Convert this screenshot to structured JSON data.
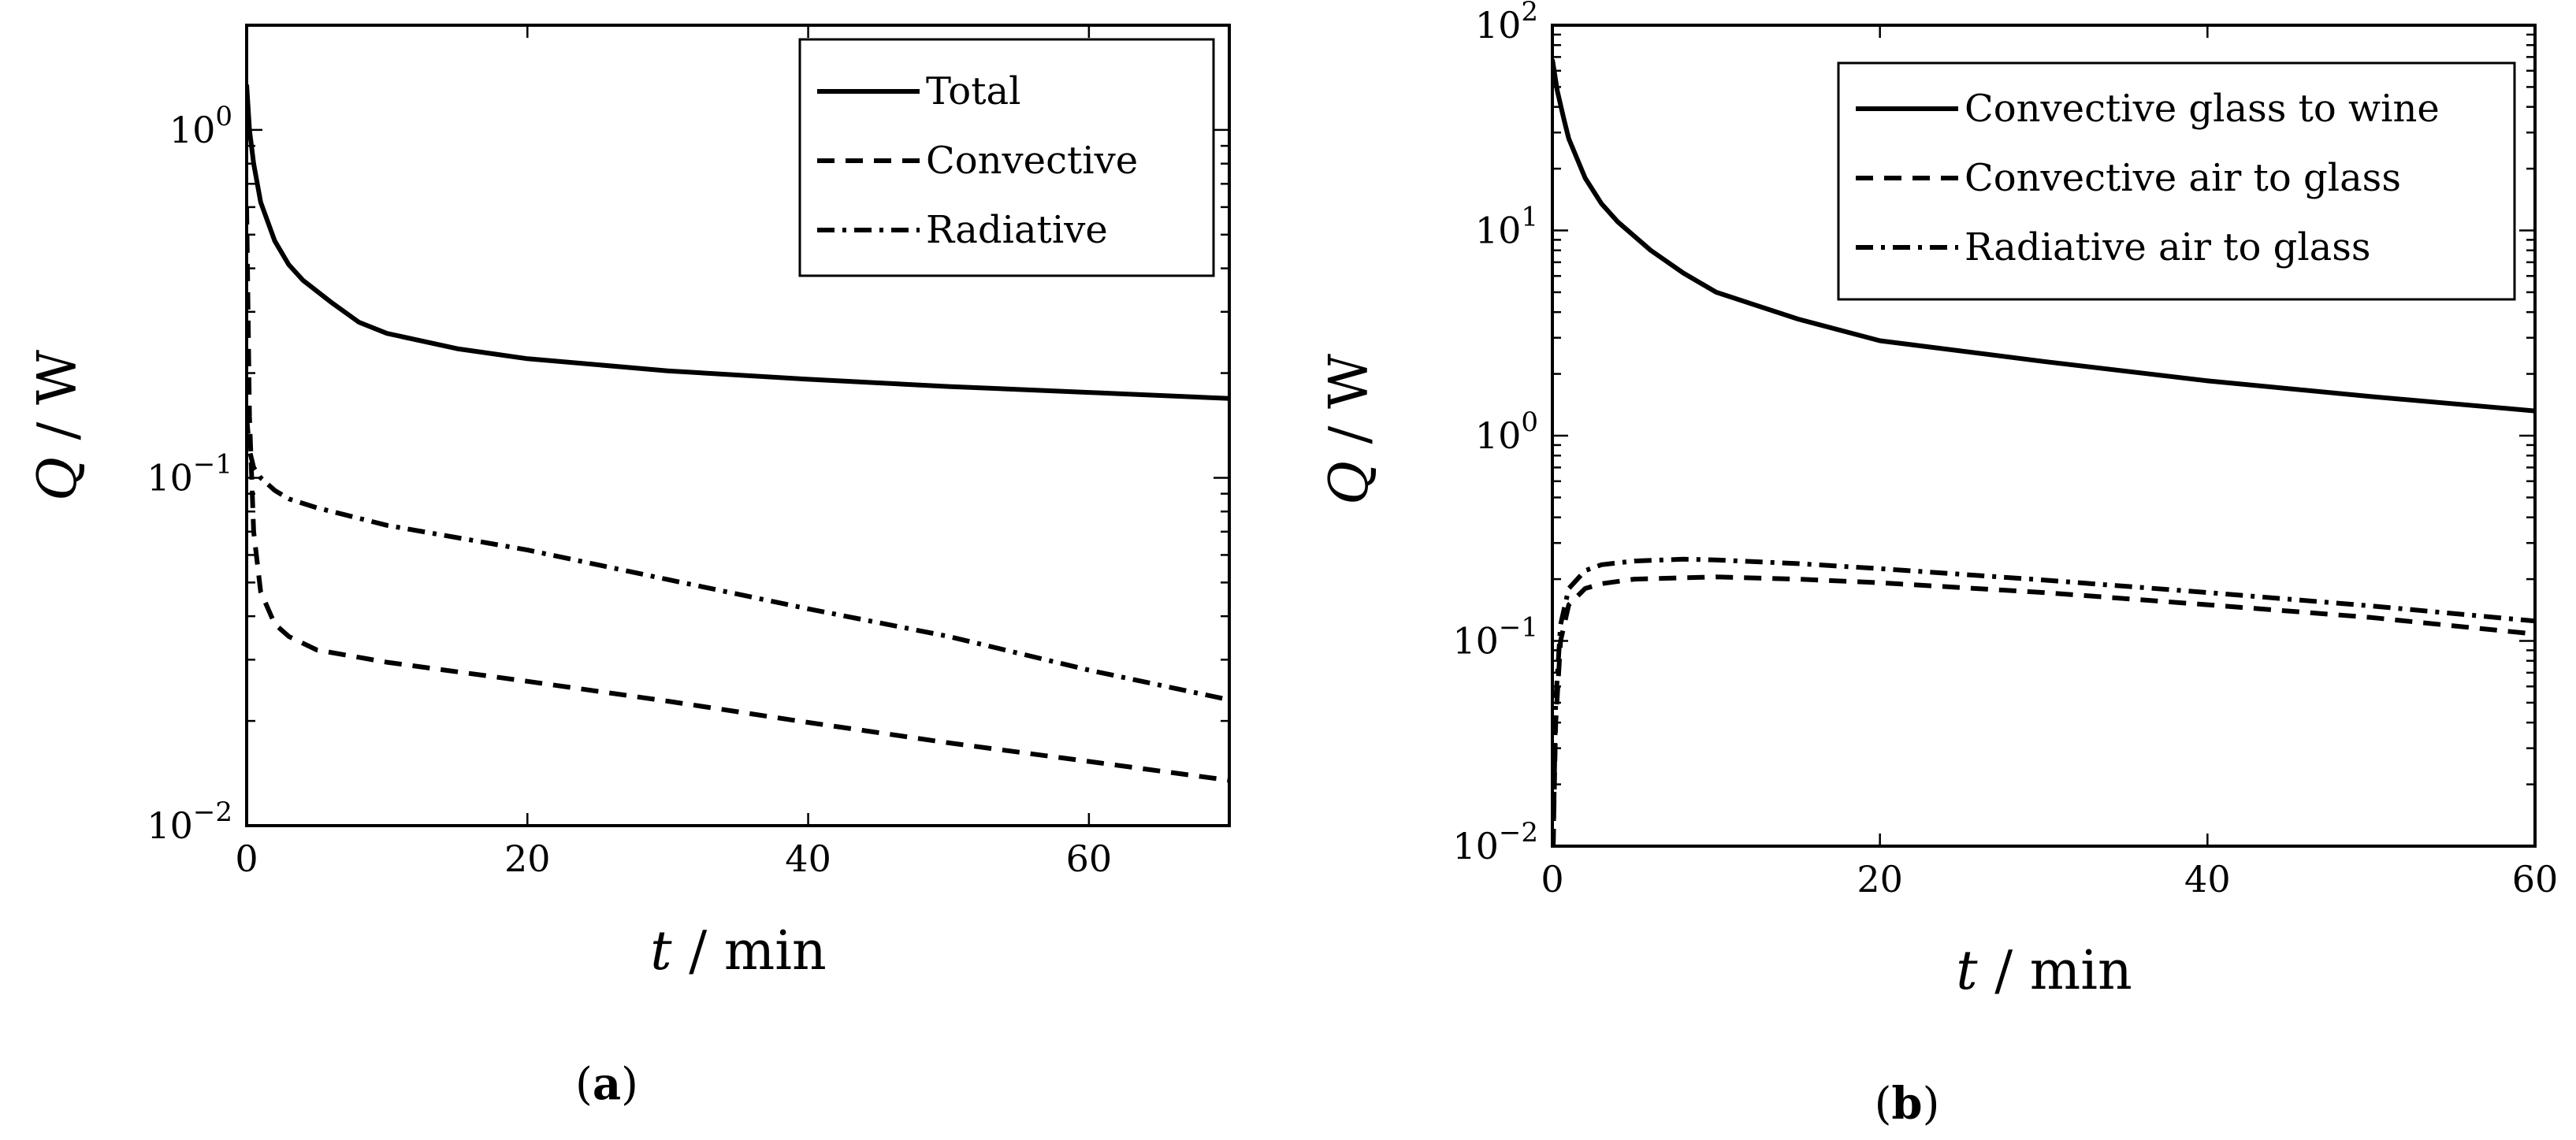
{
  "chart_data": [
    {
      "panel": "a",
      "type": "line",
      "caption": "(a)",
      "caption_letter": "a",
      "xlabel": "t / min",
      "ylabel": "Q / W",
      "x_scale": "linear",
      "y_scale": "log",
      "xlim": [
        0,
        70
      ],
      "ylim": [
        0.01,
        2
      ],
      "x_ticks": [
        0,
        20,
        40,
        60
      ],
      "x_tick_labels": [
        "0",
        "20",
        "40",
        "60"
      ],
      "y_ticks": [
        0.01,
        0.1,
        1
      ],
      "y_tick_labels": [
        {
          "base": "10",
          "exp": "−2"
        },
        {
          "base": "10",
          "exp": "−1"
        },
        {
          "base": "10",
          "exp": "0"
        }
      ],
      "legend_position": "top-right",
      "series": [
        {
          "name": "Total",
          "style": "solid",
          "x": [
            0,
            0.2,
            0.5,
            1,
            2,
            3,
            4,
            6,
            8,
            10,
            15,
            20,
            30,
            40,
            50,
            60,
            70
          ],
          "y": [
            1.35,
            1.0,
            0.8,
            0.62,
            0.48,
            0.41,
            0.37,
            0.32,
            0.28,
            0.26,
            0.235,
            0.22,
            0.203,
            0.192,
            0.183,
            0.176,
            0.169
          ]
        },
        {
          "name": "Convective",
          "style": "dashed",
          "x": [
            0,
            0.2,
            0.5,
            1,
            2,
            3,
            5,
            10,
            20,
            30,
            40,
            50,
            60,
            70
          ],
          "y": [
            0.6,
            0.15,
            0.07,
            0.047,
            0.038,
            0.035,
            0.032,
            0.0295,
            0.026,
            0.0228,
            0.0198,
            0.0173,
            0.0153,
            0.0135
          ]
        },
        {
          "name": "Radiative",
          "style": "dashdot",
          "x": [
            0,
            0.2,
            0.5,
            1,
            2,
            3,
            5,
            10,
            20,
            30,
            40,
            50,
            60,
            70
          ],
          "y": [
            0.15,
            0.12,
            0.107,
            0.1,
            0.092,
            0.087,
            0.082,
            0.073,
            0.062,
            0.051,
            0.042,
            0.035,
            0.028,
            0.023
          ]
        }
      ]
    },
    {
      "panel": "b",
      "type": "line",
      "caption": "(b)",
      "caption_letter": "b",
      "xlabel": "t / min",
      "ylabel": "Q / W",
      "x_scale": "linear",
      "y_scale": "log",
      "xlim": [
        0,
        60
      ],
      "ylim": [
        0.01,
        100
      ],
      "x_ticks": [
        0,
        20,
        40,
        60
      ],
      "x_tick_labels": [
        "0",
        "20",
        "40",
        "60"
      ],
      "y_ticks": [
        0.01,
        0.1,
        1,
        10,
        100
      ],
      "y_tick_labels": [
        {
          "base": "10",
          "exp": "−2"
        },
        {
          "base": "10",
          "exp": "−1"
        },
        {
          "base": "10",
          "exp": "0"
        },
        {
          "base": "10",
          "exp": "1"
        },
        {
          "base": "10",
          "exp": "2"
        }
      ],
      "legend_position": "top-right",
      "series": [
        {
          "name": "Convective glass to wine",
          "style": "solid",
          "x": [
            0,
            0.3,
            0.7,
            1,
            2,
            3,
            4,
            6,
            8,
            10,
            15,
            20,
            30,
            40,
            50,
            60
          ],
          "y": [
            68,
            48,
            35,
            28,
            18,
            13.5,
            11,
            8,
            6.2,
            5,
            3.7,
            2.9,
            2.3,
            1.85,
            1.55,
            1.32
          ]
        },
        {
          "name": "Convective air to glass",
          "style": "dashed",
          "x": [
            0.05,
            0.2,
            0.5,
            1,
            2,
            3,
            5,
            10,
            15,
            20,
            30,
            40,
            50,
            60
          ],
          "y": [
            0.01,
            0.04,
            0.1,
            0.15,
            0.18,
            0.19,
            0.2,
            0.205,
            0.2,
            0.192,
            0.172,
            0.15,
            0.13,
            0.108
          ]
        },
        {
          "name": "Radiative air to glass",
          "style": "dashdot",
          "x": [
            0.05,
            0.2,
            0.5,
            1,
            2,
            3,
            5,
            8,
            10,
            15,
            20,
            30,
            40,
            50,
            60
          ],
          "y": [
            0.01,
            0.05,
            0.12,
            0.18,
            0.22,
            0.235,
            0.245,
            0.25,
            0.248,
            0.238,
            0.225,
            0.198,
            0.172,
            0.148,
            0.125
          ]
        }
      ]
    }
  ]
}
